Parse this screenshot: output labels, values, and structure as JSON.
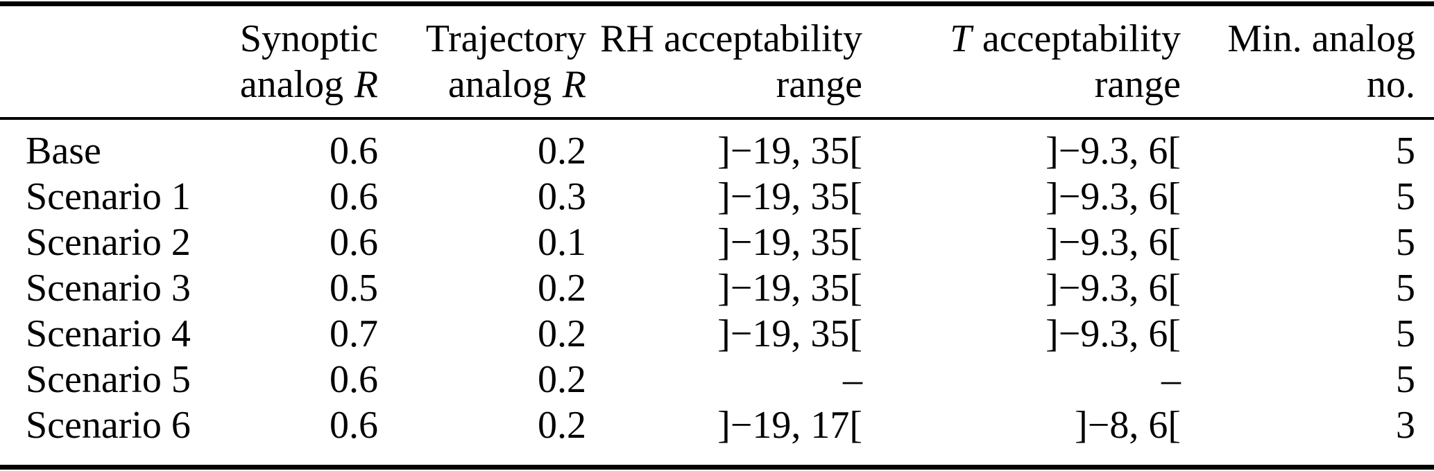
{
  "table": {
    "header": {
      "col_label": "",
      "col_synoptic": {
        "line1": "Synoptic",
        "line2_text": "analog",
        "line2_italic": "R"
      },
      "col_trajectory": {
        "line1": "Trajectory",
        "line2_text": "analog",
        "line2_italic": "R"
      },
      "col_rh": {
        "line1": "RH acceptability",
        "line2": "range"
      },
      "col_t": {
        "line1_italic": "T",
        "line1_text": "acceptability",
        "line2": "range"
      },
      "col_min": {
        "line1": "Min. analog",
        "line2": "no."
      }
    },
    "rows": [
      {
        "label": "Base",
        "synoptic_r": "0.6",
        "trajectory_r": "0.2",
        "rh_range": "]−19, 35[",
        "t_range": "]−9.3, 6[",
        "min_analog": "5"
      },
      {
        "label": "Scenario 1",
        "synoptic_r": "0.6",
        "trajectory_r": "0.3",
        "rh_range": "]−19, 35[",
        "t_range": "]−9.3, 6[",
        "min_analog": "5"
      },
      {
        "label": "Scenario 2",
        "synoptic_r": "0.6",
        "trajectory_r": "0.1",
        "rh_range": "]−19, 35[",
        "t_range": "]−9.3, 6[",
        "min_analog": "5"
      },
      {
        "label": "Scenario 3",
        "synoptic_r": "0.5",
        "trajectory_r": "0.2",
        "rh_range": "]−19, 35[",
        "t_range": "]−9.3, 6[",
        "min_analog": "5"
      },
      {
        "label": "Scenario 4",
        "synoptic_r": "0.7",
        "trajectory_r": "0.2",
        "rh_range": "]−19, 35[",
        "t_range": "]−9.3, 6[",
        "min_analog": "5"
      },
      {
        "label": "Scenario 5",
        "synoptic_r": "0.6",
        "trajectory_r": "0.2",
        "rh_range": "–",
        "t_range": "–",
        "min_analog": "5"
      },
      {
        "label": "Scenario 6",
        "synoptic_r": "0.6",
        "trajectory_r": "0.2",
        "rh_range": "]−19, 17[",
        "t_range": "]−8, 6[",
        "min_analog": "3"
      }
    ],
    "colors": {
      "text": "#000000",
      "rule": "#000000",
      "background": "#ffffff"
    }
  },
  "chart_data": {
    "type": "table",
    "columns": [
      "",
      "Synoptic analog R",
      "Trajectory analog R",
      "RH acceptability range",
      "T acceptability range",
      "Min. analog no."
    ],
    "rows": [
      [
        "Base",
        "0.6",
        "0.2",
        "]−19, 35[",
        "]−9.3, 6[",
        "5"
      ],
      [
        "Scenario 1",
        "0.6",
        "0.3",
        "]−19, 35[",
        "]−9.3, 6[",
        "5"
      ],
      [
        "Scenario 2",
        "0.6",
        "0.1",
        "]−19, 35[",
        "]−9.3, 6[",
        "5"
      ],
      [
        "Scenario 3",
        "0.5",
        "0.2",
        "]−19, 35[",
        "]−9.3, 6[",
        "5"
      ],
      [
        "Scenario 4",
        "0.7",
        "0.2",
        "]−19, 35[",
        "]−9.3, 6[",
        "5"
      ],
      [
        "Scenario 5",
        "0.6",
        "0.2",
        "–",
        "–",
        "5"
      ],
      [
        "Scenario 6",
        "0.6",
        "0.2",
        "]−19, 17[",
        "]−8, 6[",
        "3"
      ]
    ]
  }
}
